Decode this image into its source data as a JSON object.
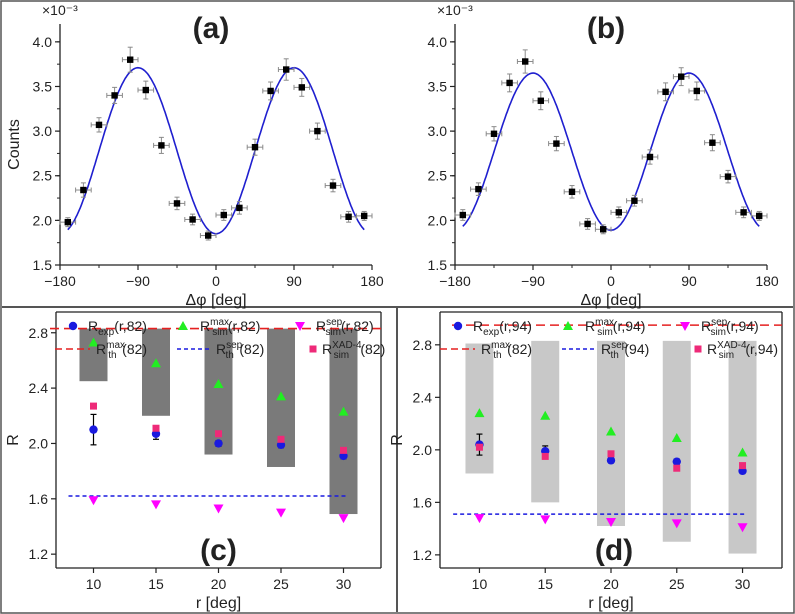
{
  "figure": {
    "divider_color": "#555555",
    "curve_color": "#1f1fcf",
    "blue_color": "#1a1adf",
    "green_color": "#22ee22",
    "magenta_color": "#ff00ff",
    "pink_color": "#ee2a78",
    "red_color": "#e52020",
    "dark_gray": "#7a7a7a",
    "light_gray": "#c8c8c8"
  },
  "chart_data": [
    {
      "id": "a",
      "panel_label": "(a)",
      "type": "scatter",
      "scale_note": "×10⁻³",
      "xlabel": "Δφ [deg]",
      "ylabel": "Counts",
      "xlim": [
        -180,
        180
      ],
      "ylim": [
        1.5,
        4.2
      ],
      "xticks": [
        -180,
        -90,
        0,
        90,
        180
      ],
      "xtick_labels": [
        "−180",
        "−90",
        "0",
        "90",
        "180"
      ],
      "yticks": [
        1.5,
        2.0,
        2.5,
        3.0,
        3.5,
        4.0
      ],
      "ytick_labels": [
        "1.5",
        "2.0",
        "2.5",
        "3.0",
        "3.5",
        "4.0"
      ],
      "points": {
        "x": [
          -171,
          -153,
          -135,
          -117,
          -99,
          -81,
          -63,
          -45,
          -27,
          -9,
          9,
          27,
          45,
          63,
          81,
          99,
          117,
          135,
          153,
          171
        ],
        "y": [
          1.98,
          2.34,
          3.07,
          3.4,
          3.8,
          3.46,
          2.84,
          2.19,
          2.01,
          1.83,
          2.06,
          2.14,
          2.82,
          3.45,
          3.69,
          3.49,
          3.0,
          2.39,
          2.04,
          2.05
        ],
        "yerr": [
          0.05,
          0.08,
          0.08,
          0.09,
          0.14,
          0.1,
          0.09,
          0.07,
          0.06,
          0.05,
          0.06,
          0.07,
          0.09,
          0.1,
          0.12,
          0.1,
          0.09,
          0.07,
          0.06,
          0.05
        ],
        "xerr": 9
      },
      "fit": {
        "mean": 2.78,
        "amplitude": 0.93,
        "period_deg": 180,
        "phase_deg": 0
      }
    },
    {
      "id": "b",
      "panel_label": "(b)",
      "type": "scatter",
      "scale_note": "×10⁻³",
      "xlabel": "Δφ [deg]",
      "ylabel": "",
      "xlim": [
        -180,
        180
      ],
      "ylim": [
        1.5,
        4.2
      ],
      "xticks": [
        -180,
        -90,
        0,
        90,
        180
      ],
      "xtick_labels": [
        "−180",
        "−90",
        "0",
        "90",
        "180"
      ],
      "yticks": [
        1.5,
        2.0,
        2.5,
        3.0,
        3.5,
        4.0
      ],
      "ytick_labels": [
        "1.5",
        "2.0",
        "2.5",
        "3.0",
        "3.5",
        "4.0"
      ],
      "points": {
        "x": [
          -171,
          -153,
          -135,
          -117,
          -99,
          -81,
          -63,
          -45,
          -27,
          -9,
          9,
          27,
          45,
          63,
          81,
          99,
          117,
          135,
          153,
          171
        ],
        "y": [
          2.06,
          2.35,
          2.97,
          3.54,
          3.78,
          3.34,
          2.86,
          2.32,
          1.96,
          1.9,
          2.09,
          2.22,
          2.71,
          3.44,
          3.61,
          3.45,
          2.87,
          2.49,
          2.09,
          2.05
        ],
        "yerr": [
          0.06,
          0.07,
          0.08,
          0.1,
          0.13,
          0.1,
          0.08,
          0.07,
          0.06,
          0.05,
          0.06,
          0.06,
          0.08,
          0.1,
          0.1,
          0.1,
          0.09,
          0.07,
          0.06,
          0.05
        ],
        "xerr": 9
      },
      "fit": {
        "mean": 2.77,
        "amplitude": 0.88,
        "period_deg": 180,
        "phase_deg": 0
      }
    },
    {
      "id": "c",
      "panel_label": "(c)",
      "type": "scatter",
      "xlabel": "r [deg]",
      "ylabel": "R",
      "xlim": [
        7,
        33
      ],
      "ylim": [
        1.1,
        2.95
      ],
      "xticks": [
        10,
        15,
        20,
        25,
        30
      ],
      "xtick_labels": [
        "10",
        "15",
        "20",
        "25",
        "30"
      ],
      "yticks": [
        1.2,
        1.6,
        2.0,
        2.4,
        2.8
      ],
      "ytick_labels": [
        "1.2",
        "1.6",
        "2.0",
        "2.4",
        "2.8"
      ],
      "r": [
        10,
        15,
        20,
        25,
        30
      ],
      "bars": {
        "bottom": [
          2.45,
          2.2,
          1.92,
          1.83,
          1.49
        ],
        "top": [
          2.83,
          2.83,
          2.83,
          2.83,
          2.83
        ],
        "shade": "dark"
      },
      "R_exp": {
        "values": [
          2.1,
          2.07,
          2.0,
          1.99,
          1.91
        ],
        "err": [
          0.11,
          0.04,
          0.02,
          0.02,
          0.02
        ]
      },
      "R_sim_max": [
        2.73,
        2.58,
        2.43,
        2.34,
        2.23
      ],
      "R_sim_sep": [
        1.59,
        1.56,
        1.53,
        1.5,
        1.46
      ],
      "R_sim_xad": [
        2.27,
        2.11,
        2.07,
        2.03,
        1.95
      ],
      "R_th_max": 2.83,
      "R_th_sep": 1.62,
      "sep_line_x": [
        8,
        30.3
      ],
      "legend": {
        "exp": {
          "main": "R",
          "sub": "exp",
          "tail": "(r,82)"
        },
        "smax": {
          "main": "R",
          "sub": "sim",
          "sup": "max",
          "tail": "(r,82)"
        },
        "ssep": {
          "main": "R",
          "sub": "sim",
          "sup": "sep",
          "tail": "(r,82)"
        },
        "thmax": {
          "main": "R",
          "sub": "th",
          "sup": "max",
          "tail": "(82)"
        },
        "thsep": {
          "main": "R",
          "sub": "th",
          "sup": "sep",
          "tail": "(82)"
        },
        "sxad": {
          "main": "R",
          "sub": "sim",
          "sup": "XAD-4",
          "tail": "(82)"
        }
      }
    },
    {
      "id": "d",
      "panel_label": "(d)",
      "type": "scatter",
      "xlabel": "r [deg]",
      "ylabel": "R",
      "xlim": [
        7,
        33
      ],
      "ylim": [
        1.1,
        3.05
      ],
      "xticks": [
        10,
        15,
        20,
        25,
        30
      ],
      "xtick_labels": [
        "10",
        "15",
        "20",
        "25",
        "30"
      ],
      "yticks": [
        1.2,
        1.6,
        2.0,
        2.4,
        2.8
      ],
      "ytick_labels": [
        "1.2",
        "1.6",
        "2.0",
        "2.4",
        "2.8"
      ],
      "r": [
        10,
        15,
        20,
        25,
        30
      ],
      "bars": {
        "bottom": [
          1.82,
          1.6,
          1.42,
          1.3,
          1.21
        ],
        "top": [
          2.81,
          2.83,
          2.83,
          2.83,
          2.83
        ],
        "shade": "light"
      },
      "R_exp": {
        "values": [
          2.04,
          1.99,
          1.92,
          1.91,
          1.84
        ],
        "err": [
          0.08,
          0.04,
          0.02,
          0.02,
          0.02
        ]
      },
      "R_sim_max": [
        2.28,
        2.26,
        2.14,
        2.09,
        1.98
      ],
      "R_sim_sep": [
        1.48,
        1.47,
        1.45,
        1.44,
        1.41
      ],
      "R_sim_xad": [
        2.02,
        1.95,
        1.97,
        1.86,
        1.88
      ],
      "R_th_max": 2.95,
      "R_th_sep": 1.51,
      "sep_line_x": [
        8,
        30.3
      ],
      "legend": {
        "exp": {
          "main": "R",
          "sub": "exp",
          "tail": "(r,94)"
        },
        "smax": {
          "main": "R",
          "sub": "sim",
          "sup": "max",
          "tail": "(r,94)"
        },
        "ssep": {
          "main": "R",
          "sub": "sim",
          "sup": "sep",
          "tail": "(r,94)"
        },
        "thmax": {
          "main": "R",
          "sub": "th",
          "sup": "max",
          "tail": "(82)"
        },
        "thsep": {
          "main": "R",
          "sub": "th",
          "sup": "sep",
          "tail": "(94)"
        },
        "sxad": {
          "main": "R",
          "sub": "sim",
          "sup": "XAD-4",
          "tail": "(r,94)"
        }
      }
    }
  ]
}
